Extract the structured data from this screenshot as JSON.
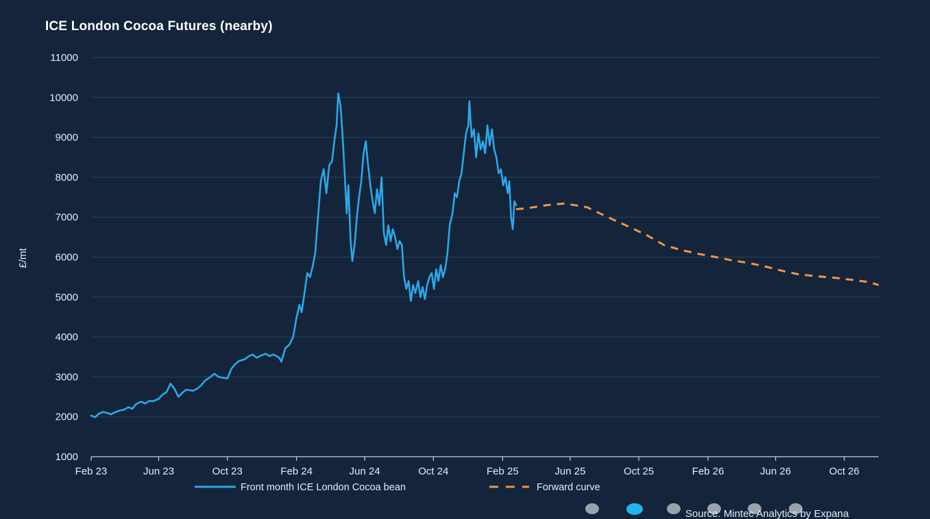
{
  "chart_data": {
    "type": "line",
    "title": "ICE London Cocoa Futures (nearby)",
    "ylabel": "£/mt",
    "xlabel": "",
    "ylim": [
      1000,
      11000
    ],
    "yticks": [
      1000,
      2000,
      3000,
      4000,
      5000,
      6000,
      7000,
      8000,
      9000,
      10000,
      11000
    ],
    "xlim": [
      "2023-02-01",
      "2026-12-01"
    ],
    "xticks": [
      {
        "date": "2023-02-01",
        "label": "Feb 23"
      },
      {
        "date": "2023-06-01",
        "label": "Jun 23"
      },
      {
        "date": "2023-10-01",
        "label": "Oct 23"
      },
      {
        "date": "2024-02-01",
        "label": "Feb 24"
      },
      {
        "date": "2024-06-01",
        "label": "Jun 24"
      },
      {
        "date": "2024-10-01",
        "label": "Oct 24"
      },
      {
        "date": "2025-02-01",
        "label": "Feb 25"
      },
      {
        "date": "2025-06-01",
        "label": "Jun 25"
      },
      {
        "date": "2025-10-01",
        "label": "Oct 25"
      },
      {
        "date": "2026-02-01",
        "label": "Feb 26"
      },
      {
        "date": "2026-06-01",
        "label": "Jun 26"
      },
      {
        "date": "2026-10-01",
        "label": "Oct 26"
      }
    ],
    "grid": "horizontal",
    "legend_position": "bottom",
    "series": [
      {
        "name": "Front month ICE London Cocoa bean",
        "color": "#29a9e8",
        "style": "solid",
        "points": [
          [
            "2023-02-01",
            2030
          ],
          [
            "2023-02-08",
            1990
          ],
          [
            "2023-02-15",
            2080
          ],
          [
            "2023-02-22",
            2120
          ],
          [
            "2023-03-01",
            2100
          ],
          [
            "2023-03-08",
            2060
          ],
          [
            "2023-03-15",
            2110
          ],
          [
            "2023-03-22",
            2150
          ],
          [
            "2023-04-01",
            2180
          ],
          [
            "2023-04-08",
            2240
          ],
          [
            "2023-04-15",
            2200
          ],
          [
            "2023-04-22",
            2320
          ],
          [
            "2023-05-01",
            2380
          ],
          [
            "2023-05-08",
            2330
          ],
          [
            "2023-05-15",
            2400
          ],
          [
            "2023-05-22",
            2390
          ],
          [
            "2023-06-01",
            2450
          ],
          [
            "2023-06-08",
            2560
          ],
          [
            "2023-06-15",
            2620
          ],
          [
            "2023-06-22",
            2830
          ],
          [
            "2023-06-29",
            2700
          ],
          [
            "2023-07-06",
            2500
          ],
          [
            "2023-07-13",
            2600
          ],
          [
            "2023-07-20",
            2680
          ],
          [
            "2023-08-01",
            2650
          ],
          [
            "2023-08-08",
            2700
          ],
          [
            "2023-08-15",
            2780
          ],
          [
            "2023-08-22",
            2900
          ],
          [
            "2023-09-01",
            3000
          ],
          [
            "2023-09-08",
            3080
          ],
          [
            "2023-09-15",
            3000
          ],
          [
            "2023-09-22",
            2980
          ],
          [
            "2023-10-01",
            2960
          ],
          [
            "2023-10-08",
            3200
          ],
          [
            "2023-10-15",
            3320
          ],
          [
            "2023-10-22",
            3400
          ],
          [
            "2023-11-01",
            3440
          ],
          [
            "2023-11-08",
            3520
          ],
          [
            "2023-11-15",
            3560
          ],
          [
            "2023-11-22",
            3480
          ],
          [
            "2023-12-01",
            3540
          ],
          [
            "2023-12-08",
            3580
          ],
          [
            "2023-12-15",
            3520
          ],
          [
            "2023-12-22",
            3560
          ],
          [
            "2024-01-01",
            3480
          ],
          [
            "2024-01-05",
            3380
          ],
          [
            "2024-01-12",
            3720
          ],
          [
            "2024-01-19",
            3800
          ],
          [
            "2024-01-26",
            4000
          ],
          [
            "2024-02-01",
            4500
          ],
          [
            "2024-02-06",
            4800
          ],
          [
            "2024-02-10",
            4620
          ],
          [
            "2024-02-15",
            5100
          ],
          [
            "2024-02-20",
            5600
          ],
          [
            "2024-02-25",
            5500
          ],
          [
            "2024-03-01",
            5800
          ],
          [
            "2024-03-05",
            6100
          ],
          [
            "2024-03-10",
            7000
          ],
          [
            "2024-03-15",
            7900
          ],
          [
            "2024-03-20",
            8200
          ],
          [
            "2024-03-25",
            7600
          ],
          [
            "2024-03-30",
            8300
          ],
          [
            "2024-04-04",
            8400
          ],
          [
            "2024-04-08",
            8900
          ],
          [
            "2024-04-12",
            9300
          ],
          [
            "2024-04-15",
            10100
          ],
          [
            "2024-04-19",
            9800
          ],
          [
            "2024-04-22",
            9200
          ],
          [
            "2024-04-26",
            8200
          ],
          [
            "2024-04-30",
            7100
          ],
          [
            "2024-05-03",
            7800
          ],
          [
            "2024-05-07",
            6400
          ],
          [
            "2024-05-10",
            5900
          ],
          [
            "2024-05-14",
            6300
          ],
          [
            "2024-05-18",
            7000
          ],
          [
            "2024-05-22",
            7500
          ],
          [
            "2024-05-26",
            7900
          ],
          [
            "2024-05-30",
            8600
          ],
          [
            "2024-06-03",
            8900
          ],
          [
            "2024-06-07",
            8300
          ],
          [
            "2024-06-11",
            7800
          ],
          [
            "2024-06-15",
            7400
          ],
          [
            "2024-06-19",
            7100
          ],
          [
            "2024-06-23",
            7700
          ],
          [
            "2024-06-27",
            7300
          ],
          [
            "2024-07-01",
            8000
          ],
          [
            "2024-07-05",
            6600
          ],
          [
            "2024-07-09",
            6300
          ],
          [
            "2024-07-13",
            6800
          ],
          [
            "2024-07-17",
            6400
          ],
          [
            "2024-07-21",
            6700
          ],
          [
            "2024-07-25",
            6500
          ],
          [
            "2024-07-29",
            6200
          ],
          [
            "2024-08-02",
            6400
          ],
          [
            "2024-08-06",
            6300
          ],
          [
            "2024-08-10",
            5500
          ],
          [
            "2024-08-14",
            5200
          ],
          [
            "2024-08-18",
            5400
          ],
          [
            "2024-08-22",
            4900
          ],
          [
            "2024-08-26",
            5300
          ],
          [
            "2024-08-30",
            5100
          ],
          [
            "2024-09-04",
            5400
          ],
          [
            "2024-09-08",
            5000
          ],
          [
            "2024-09-12",
            5250
          ],
          [
            "2024-09-16",
            4950
          ],
          [
            "2024-09-20",
            5300
          ],
          [
            "2024-09-24",
            5500
          ],
          [
            "2024-09-28",
            5600
          ],
          [
            "2024-10-02",
            5200
          ],
          [
            "2024-10-06",
            5700
          ],
          [
            "2024-10-10",
            5400
          ],
          [
            "2024-10-14",
            5800
          ],
          [
            "2024-10-18",
            5500
          ],
          [
            "2024-10-22",
            5700
          ],
          [
            "2024-10-26",
            6100
          ],
          [
            "2024-10-30",
            6800
          ],
          [
            "2024-11-04",
            7100
          ],
          [
            "2024-11-08",
            7600
          ],
          [
            "2024-11-12",
            7500
          ],
          [
            "2024-11-16",
            7900
          ],
          [
            "2024-11-20",
            8100
          ],
          [
            "2024-11-24",
            8600
          ],
          [
            "2024-11-28",
            9100
          ],
          [
            "2024-12-02",
            9300
          ],
          [
            "2024-12-04",
            9900
          ],
          [
            "2024-12-08",
            9000
          ],
          [
            "2024-12-12",
            9200
          ],
          [
            "2024-12-16",
            8500
          ],
          [
            "2024-12-20",
            9100
          ],
          [
            "2024-12-24",
            8700
          ],
          [
            "2024-12-28",
            8900
          ],
          [
            "2025-01-01",
            8600
          ],
          [
            "2025-01-05",
            9300
          ],
          [
            "2025-01-09",
            8800
          ],
          [
            "2025-01-13",
            9200
          ],
          [
            "2025-01-17",
            8700
          ],
          [
            "2025-01-21",
            8500
          ],
          [
            "2025-01-25",
            8100
          ],
          [
            "2025-01-29",
            8200
          ],
          [
            "2025-02-02",
            7800
          ],
          [
            "2025-02-06",
            8000
          ],
          [
            "2025-02-10",
            7600
          ],
          [
            "2025-02-13",
            7900
          ],
          [
            "2025-02-16",
            7000
          ],
          [
            "2025-02-19",
            6700
          ],
          [
            "2025-02-22",
            7400
          ],
          [
            "2025-02-25",
            7300
          ]
        ]
      },
      {
        "name": "Forward curve",
        "color": "#f0954a",
        "style": "dashed",
        "points": [
          [
            "2025-02-25",
            7200
          ],
          [
            "2025-03-15",
            7220
          ],
          [
            "2025-04-10",
            7280
          ],
          [
            "2025-05-01",
            7320
          ],
          [
            "2025-05-20",
            7340
          ],
          [
            "2025-06-10",
            7300
          ],
          [
            "2025-07-01",
            7250
          ],
          [
            "2025-07-20",
            7120
          ],
          [
            "2025-08-15",
            6950
          ],
          [
            "2025-09-15",
            6750
          ],
          [
            "2025-10-15",
            6550
          ],
          [
            "2025-11-15",
            6300
          ],
          [
            "2025-12-15",
            6180
          ],
          [
            "2026-01-15",
            6080
          ],
          [
            "2026-02-15",
            6000
          ],
          [
            "2026-03-15",
            5920
          ],
          [
            "2026-04-15",
            5850
          ],
          [
            "2026-05-15",
            5760
          ],
          [
            "2026-06-15",
            5650
          ],
          [
            "2026-07-15",
            5560
          ],
          [
            "2026-08-15",
            5520
          ],
          [
            "2026-09-15",
            5480
          ],
          [
            "2026-10-15",
            5430
          ],
          [
            "2026-11-15",
            5370
          ],
          [
            "2026-12-01",
            5300
          ]
        ]
      }
    ]
  },
  "source": "Source: Mintec Analytics by Expana",
  "pager": {
    "count": 6,
    "active_index": 1
  }
}
